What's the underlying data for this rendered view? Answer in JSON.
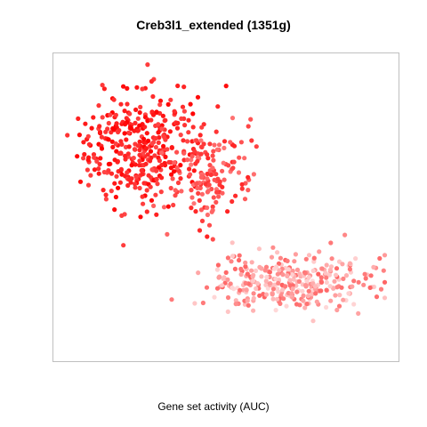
{
  "chart_data": {
    "type": "scatter",
    "title": "Creb3l1_extended (1351g)",
    "xlabel": "Gene set activity (AUC)",
    "ylabel": "",
    "axes_visible": false,
    "grid": false,
    "frame_color": "#bfbfbf",
    "point_color_low": "#ffecec",
    "point_color_high": "#ff0000",
    "color_encoding": "AUC intensity (light = low, red = high)",
    "clusters": [
      {
        "name": "upper-left",
        "cx": 0.25,
        "cy": 0.7,
        "sx": 0.15,
        "sy": 0.17,
        "n": 340,
        "act_min": 0.7,
        "act_max": 1.0
      },
      {
        "name": "upper-mid",
        "cx": 0.45,
        "cy": 0.62,
        "sx": 0.11,
        "sy": 0.15,
        "n": 160,
        "act_min": 0.5,
        "act_max": 0.85
      },
      {
        "name": "lower-right",
        "cx": 0.7,
        "cy": 0.24,
        "sx": 0.2,
        "sy": 0.08,
        "n": 330,
        "act_min": 0.08,
        "act_max": 0.6
      }
    ]
  }
}
